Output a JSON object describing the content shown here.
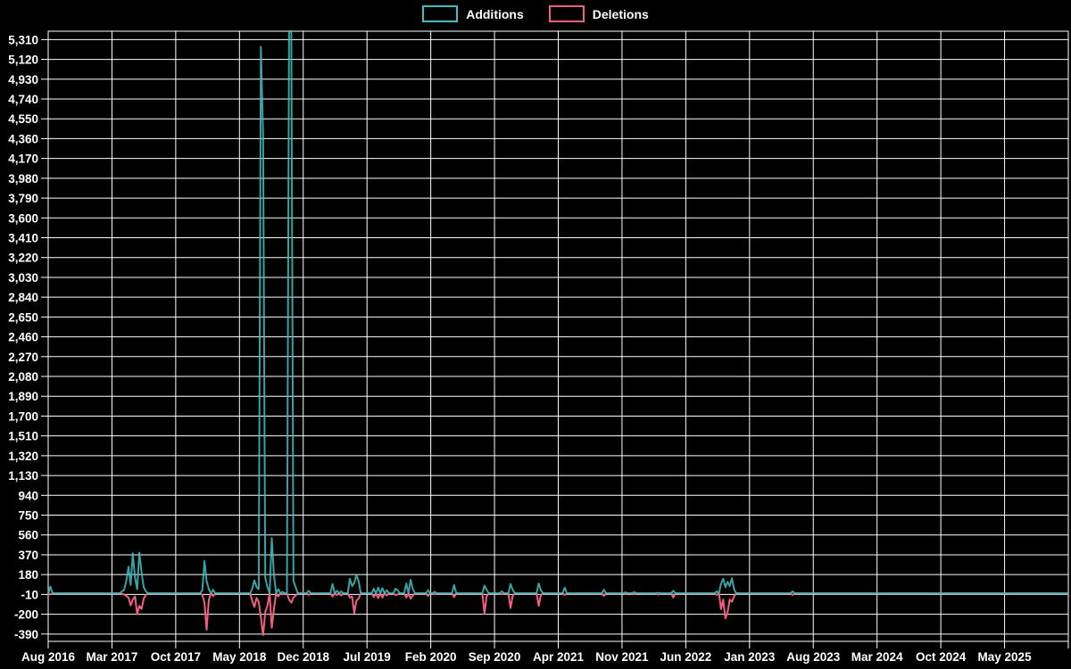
{
  "chart_data": {
    "type": "line",
    "title": "",
    "background_color": "#000000",
    "grid": true,
    "grid_color": "#ffffff",
    "legend_position": "top-center",
    "legend": [
      {
        "label": "Additions",
        "color": "#3fbfc1"
      },
      {
        "label": "Deletions",
        "color": "#f25f7f"
      }
    ],
    "x_axis": {
      "tick_labels": [
        "Aug 2016",
        "Mar 2017",
        "Oct 2017",
        "May 2018",
        "Dec 2018",
        "Jul 2019",
        "Feb 2020",
        "Sep 2020",
        "Apr 2021",
        "Nov 2021",
        "Jun 2022",
        "Jan 2023",
        "Aug 2023",
        "Mar 2024",
        "Oct 2024",
        "May 2025"
      ],
      "tick_interval_months": 7,
      "gridline_count": 17
    },
    "y_axis": {
      "tick_labels": [
        "5,310",
        "5,120",
        "4,930",
        "4,740",
        "4,550",
        "4,360",
        "4,170",
        "3,980",
        "3,790",
        "3,600",
        "3,410",
        "3,220",
        "3,030",
        "2,840",
        "2,650",
        "2,460",
        "2,270",
        "2,080",
        "1,890",
        "1,700",
        "1,510",
        "1,320",
        "1,130",
        "940",
        "750",
        "560",
        "370",
        "180",
        "-10",
        "-200",
        "-390"
      ],
      "max": 5310,
      "min": -390,
      "step": 190
    },
    "plot_range": {
      "y_top": 5390,
      "y_bottom": -460
    },
    "series": {
      "unit": "week",
      "weeks_total": 470,
      "start": "Aug 2016",
      "end": "Aug 2025",
      "default_value": 0,
      "note": "sparse nonzero weeks: [week_index, additions, deletions]",
      "spikes": [
        [
          1,
          65,
          -10
        ],
        [
          34,
          20,
          -5
        ],
        [
          35,
          35,
          -10
        ],
        [
          36,
          120,
          -25
        ],
        [
          37,
          255,
          -40
        ],
        [
          38,
          80,
          -115
        ],
        [
          39,
          385,
          -60
        ],
        [
          40,
          150,
          -30
        ],
        [
          41,
          40,
          -200
        ],
        [
          42,
          390,
          -120
        ],
        [
          43,
          200,
          -150
        ],
        [
          44,
          60,
          -50
        ],
        [
          45,
          20,
          -15
        ],
        [
          71,
          30,
          -15
        ],
        [
          72,
          310,
          -90
        ],
        [
          73,
          120,
          -350
        ],
        [
          74,
          40,
          -60
        ],
        [
          76,
          35,
          -25
        ],
        [
          94,
          45,
          -70
        ],
        [
          95,
          125,
          -130
        ],
        [
          96,
          60,
          -45
        ],
        [
          97,
          40,
          -80
        ],
        [
          98,
          5240,
          -230
        ],
        [
          99,
          4400,
          -400
        ],
        [
          100,
          150,
          -180
        ],
        [
          101,
          60,
          -120
        ],
        [
          103,
          530,
          -330
        ],
        [
          104,
          180,
          -150
        ],
        [
          106,
          40,
          -30
        ],
        [
          108,
          15,
          -10
        ],
        [
          111,
          5390,
          -60
        ],
        [
          112,
          5390,
          -90
        ],
        [
          113,
          120,
          -40
        ],
        [
          114,
          60,
          -20
        ],
        [
          120,
          25,
          -15
        ],
        [
          131,
          90,
          -30
        ],
        [
          133,
          25,
          -15
        ],
        [
          135,
          20,
          -20
        ],
        [
          139,
          140,
          -40
        ],
        [
          140,
          70,
          -30
        ],
        [
          141,
          100,
          -190
        ],
        [
          142,
          175,
          -70
        ],
        [
          143,
          120,
          -50
        ],
        [
          150,
          45,
          -35
        ],
        [
          152,
          55,
          -45
        ],
        [
          154,
          50,
          -40
        ],
        [
          156,
          30,
          -20
        ],
        [
          160,
          45,
          -15
        ],
        [
          161,
          30,
          -10
        ],
        [
          165,
          95,
          -40
        ],
        [
          167,
          130,
          -50
        ],
        [
          168,
          40,
          -20
        ],
        [
          175,
          30,
          -25
        ],
        [
          178,
          15,
          -10
        ],
        [
          187,
          80,
          -35
        ],
        [
          201,
          75,
          -195
        ],
        [
          202,
          35,
          -30
        ],
        [
          209,
          20,
          -10
        ],
        [
          213,
          90,
          -140
        ],
        [
          214,
          35,
          -25
        ],
        [
          226,
          95,
          -120
        ],
        [
          227,
          30,
          -15
        ],
        [
          238,
          55,
          -15
        ],
        [
          256,
          35,
          -25
        ],
        [
          266,
          10,
          -5
        ],
        [
          270,
          12,
          -8
        ],
        [
          281,
          5,
          -12
        ],
        [
          288,
          25,
          -40
        ],
        [
          308,
          20,
          -15
        ],
        [
          310,
          95,
          -150
        ],
        [
          311,
          140,
          -60
        ],
        [
          312,
          60,
          -240
        ],
        [
          313,
          110,
          -180
        ],
        [
          314,
          70,
          -60
        ],
        [
          315,
          145,
          -80
        ],
        [
          316,
          40,
          -30
        ],
        [
          343,
          20,
          -15
        ]
      ]
    }
  }
}
